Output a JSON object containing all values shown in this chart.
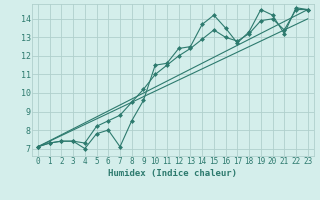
{
  "xlabel": "Humidex (Indice chaleur)",
  "bg_color": "#d4eeeb",
  "grid_color": "#b0d0cc",
  "line_color": "#2d7a6e",
  "xlim": [
    -0.5,
    23.5
  ],
  "ylim": [
    6.6,
    14.8
  ],
  "xticks": [
    0,
    1,
    2,
    3,
    4,
    5,
    6,
    7,
    8,
    9,
    10,
    11,
    12,
    13,
    14,
    15,
    16,
    17,
    18,
    19,
    20,
    21,
    22,
    23
  ],
  "yticks": [
    7,
    8,
    9,
    10,
    11,
    12,
    13,
    14
  ],
  "line1_x": [
    0,
    1,
    2,
    3,
    4,
    5,
    6,
    7,
    8,
    9,
    10,
    11,
    12,
    13,
    14,
    15,
    16,
    17,
    18,
    19,
    20,
    21,
    22,
    23
  ],
  "line1_y": [
    7.1,
    7.3,
    7.4,
    7.4,
    7.0,
    7.8,
    8.0,
    7.1,
    8.5,
    9.6,
    11.5,
    11.6,
    12.4,
    12.5,
    13.7,
    14.2,
    13.5,
    12.7,
    13.3,
    14.5,
    14.2,
    13.2,
    14.6,
    14.5
  ],
  "line2_x": [
    0,
    1,
    2,
    3,
    4,
    5,
    6,
    7,
    8,
    9,
    10,
    11,
    12,
    13,
    14,
    15,
    16,
    17,
    18,
    19,
    20,
    21,
    22,
    23
  ],
  "line2_y": [
    7.1,
    7.3,
    7.4,
    7.4,
    7.3,
    8.2,
    8.5,
    8.8,
    9.5,
    10.2,
    11.0,
    11.5,
    12.0,
    12.4,
    12.9,
    13.4,
    13.0,
    12.8,
    13.2,
    13.9,
    14.0,
    13.4,
    14.5,
    14.5
  ],
  "line3_x": [
    0,
    23
  ],
  "line3_y": [
    7.1,
    14.5
  ],
  "line4_x": [
    0,
    23
  ],
  "line4_y": [
    7.1,
    14.0
  ],
  "marker_size": 2.5,
  "line_width": 0.8,
  "xlabel_fontsize": 6.5,
  "tick_fontsize": 5.5
}
